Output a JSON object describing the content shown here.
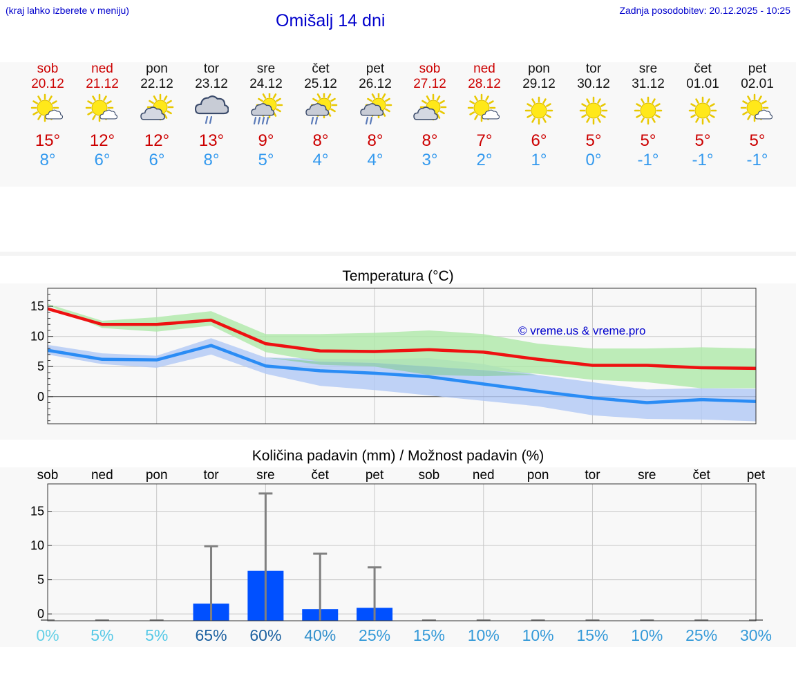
{
  "header": {
    "hint": "(kraj lahko izberete v meniju)",
    "title": "Omišalj 14 dni",
    "updated": "Zadnja posodobitev: 20.12.2025 - 10:25"
  },
  "days": [
    {
      "name": "sob",
      "date": "20.12",
      "weekend": true,
      "icon": "sun-cloud-icon",
      "tmax": "15°",
      "tmin": "8°"
    },
    {
      "name": "ned",
      "date": "21.12",
      "weekend": true,
      "icon": "sun-cloud-icon",
      "tmax": "12°",
      "tmin": "6°"
    },
    {
      "name": "pon",
      "date": "22.12",
      "weekend": false,
      "icon": "cloud-sun-icon",
      "tmax": "12°",
      "tmin": "6°"
    },
    {
      "name": "tor",
      "date": "23.12",
      "weekend": false,
      "icon": "cloud-rain-icon",
      "tmax": "13°",
      "tmin": "8°"
    },
    {
      "name": "sre",
      "date": "24.12",
      "weekend": false,
      "icon": "sun-cloud-heavy-rain-icon",
      "tmax": "9°",
      "tmin": "5°"
    },
    {
      "name": "čet",
      "date": "25.12",
      "weekend": false,
      "icon": "sun-cloud-rain-icon",
      "tmax": "8°",
      "tmin": "4°"
    },
    {
      "name": "pet",
      "date": "26.12",
      "weekend": false,
      "icon": "sun-cloud-rain-icon",
      "tmax": "8°",
      "tmin": "4°"
    },
    {
      "name": "sob",
      "date": "27.12",
      "weekend": true,
      "icon": "cloud-sun-icon",
      "tmax": "8°",
      "tmin": "3°"
    },
    {
      "name": "ned",
      "date": "28.12",
      "weekend": true,
      "icon": "sun-cloud-icon",
      "tmax": "7°",
      "tmin": "2°"
    },
    {
      "name": "pon",
      "date": "29.12",
      "weekend": false,
      "icon": "sun-icon",
      "tmax": "6°",
      "tmin": "1°"
    },
    {
      "name": "tor",
      "date": "30.12",
      "weekend": false,
      "icon": "sun-icon",
      "tmax": "5°",
      "tmin": "0°"
    },
    {
      "name": "sre",
      "date": "31.12",
      "weekend": false,
      "icon": "sun-icon",
      "tmax": "5°",
      "tmin": "-1°"
    },
    {
      "name": "čet",
      "date": "01.01",
      "weekend": false,
      "icon": "sun-icon",
      "tmax": "5°",
      "tmin": "-1°"
    },
    {
      "name": "pet",
      "date": "02.01",
      "weekend": false,
      "icon": "sun-cloud-icon",
      "tmax": "5°",
      "tmin": "-1°"
    }
  ],
  "colors": {
    "weekend": "#cc0000",
    "weekday": "#111111",
    "max_line": "#ee1111",
    "min_line": "#2a8cf5",
    "max_band": "#aee8a8",
    "min_band": "#b0c8f5",
    "overlap": "#8ccca8",
    "bar": "#0050ff",
    "err": "#808080"
  },
  "chart_data": [
    {
      "type": "line",
      "title": "Temperatura (°C)",
      "watermark": "© vreme.us & vreme.pro",
      "ylim": [
        -4.5,
        18
      ],
      "yticks": [
        0,
        5,
        10,
        15
      ],
      "ytick_labels": [
        "0",
        "5",
        "10",
        "15"
      ],
      "x": [
        0,
        1,
        2,
        3,
        4,
        5,
        6,
        7,
        8,
        9,
        10,
        11,
        12,
        13
      ],
      "series": [
        {
          "name": "max",
          "values": [
            14.6,
            12.0,
            12.0,
            12.7,
            8.8,
            7.6,
            7.5,
            7.8,
            7.4,
            6.2,
            5.2,
            5.2,
            4.8,
            4.7
          ],
          "band_low": [
            15.2,
            11.4,
            10.8,
            11.8,
            7.4,
            5.8,
            5.6,
            5.0,
            4.4,
            3.8,
            2.8,
            2.4,
            1.4,
            1.4
          ],
          "band_high": [
            15.4,
            12.6,
            13.2,
            14.2,
            10.4,
            10.4,
            10.6,
            11.0,
            10.4,
            8.8,
            8.0,
            8.0,
            8.2,
            8.0
          ]
        },
        {
          "name": "min",
          "values": [
            7.7,
            6.2,
            6.1,
            8.5,
            5.1,
            4.3,
            3.9,
            3.3,
            2.1,
            0.9,
            -0.2,
            -1.0,
            -0.5,
            -0.8
          ],
          "band_low": [
            7.0,
            5.4,
            4.8,
            7.0,
            3.8,
            1.8,
            1.1,
            0.2,
            -0.7,
            -1.6,
            -3.1,
            -3.7,
            -3.8,
            -4.1
          ],
          "band_high": [
            8.6,
            7.2,
            6.8,
            9.7,
            6.5,
            6.3,
            6.2,
            6.4,
            5.4,
            3.6,
            2.4,
            1.2,
            1.4,
            1.3
          ]
        }
      ]
    },
    {
      "type": "bar",
      "title": "Količina padavin (mm) / Možnost padavin (%)",
      "categories": [
        "sob",
        "ned",
        "pon",
        "tor",
        "sre",
        "čet",
        "pet",
        "sob",
        "ned",
        "pon",
        "tor",
        "sre",
        "čet",
        "pet"
      ],
      "values": [
        0,
        0,
        0,
        1.5,
        6.3,
        0.7,
        0.9,
        0,
        0,
        0,
        0,
        0,
        0,
        0
      ],
      "err_high": [
        0,
        0,
        0,
        9.9,
        17.6,
        8.8,
        6.8,
        0,
        0,
        0,
        0,
        0,
        0,
        0
      ],
      "ylim": [
        -1,
        19
      ],
      "yticks": [
        0,
        5,
        10,
        15
      ],
      "ytick_labels": [
        "0",
        "5",
        "10",
        "15"
      ],
      "probability": [
        "0%",
        "5%",
        "5%",
        "65%",
        "60%",
        "40%",
        "25%",
        "15%",
        "10%",
        "10%",
        "15%",
        "10%",
        "25%",
        "30%"
      ],
      "probability_colors": [
        "#66d0e6",
        "#55c8e6",
        "#55c8e6",
        "#1b60a0",
        "#1b60a0",
        "#3390cc",
        "#3399d8",
        "#3399d8",
        "#3399d8",
        "#3399d8",
        "#3399d8",
        "#3399d8",
        "#3399d8",
        "#3399d8"
      ]
    }
  ]
}
